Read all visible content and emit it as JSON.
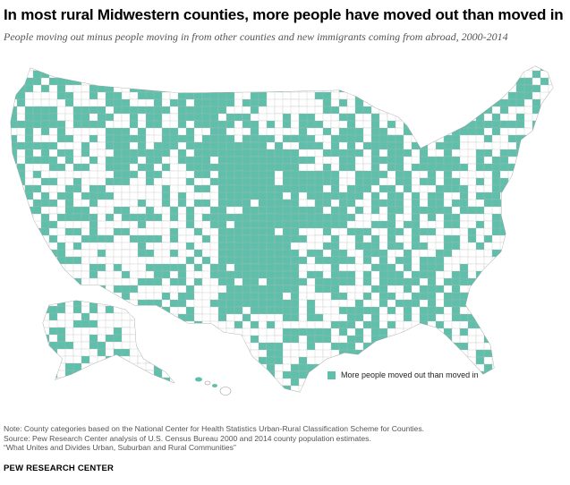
{
  "title": "In most rural Midwestern counties, more people have moved out than moved in",
  "subtitle": "People moving out minus people moving in from other counties and new immigrants coming from abroad, 2000-2014",
  "legend": {
    "label": "More people moved out than moved in",
    "color": "#5fbfaa"
  },
  "notes": [
    "Note: County categories based on the National Center for Health Statistics Urban-Rural Classification Scheme for Counties.",
    "Source: Pew Research Center analysis of U.S. Census Bureau 2000 and 2014 county population  estimates.",
    "“What Unites and Divides Urban, Suburban  and Rural Communities”"
  ],
  "credit": "PEW RESEARCH CENTER",
  "colors": {
    "out_migration": "#5fbfaa",
    "land": "#ffffff",
    "border": "#b8b8b8"
  }
}
